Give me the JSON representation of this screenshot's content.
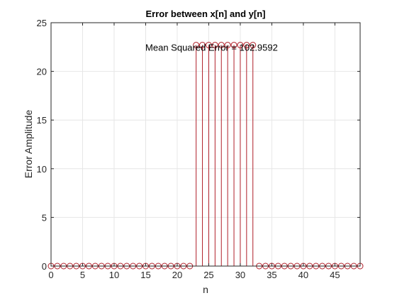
{
  "chart_data": {
    "type": "stem",
    "title": "Error between x[n] and y[n]",
    "xlabel": "n",
    "ylabel": "Error Amplitude",
    "xlim": [
      0,
      49
    ],
    "ylim": [
      0,
      25
    ],
    "xticks": [
      0,
      5,
      10,
      15,
      20,
      25,
      30,
      35,
      40,
      45
    ],
    "yticks": [
      0,
      5,
      10,
      15,
      20,
      25
    ],
    "grid": true,
    "annotation": {
      "text": "Mean Squared Error = 102.9592",
      "x": 25,
      "y": 22.4
    },
    "x": [
      0,
      1,
      2,
      3,
      4,
      5,
      6,
      7,
      8,
      9,
      10,
      11,
      12,
      13,
      14,
      15,
      16,
      17,
      18,
      19,
      20,
      21,
      22,
      23,
      24,
      25,
      26,
      27,
      28,
      29,
      30,
      31,
      32,
      33,
      34,
      35,
      36,
      37,
      38,
      39,
      40,
      41,
      42,
      43,
      44,
      45,
      46,
      47,
      48,
      49
    ],
    "values": [
      0,
      0,
      0,
      0,
      0,
      0,
      0,
      0,
      0,
      0,
      0,
      0,
      0,
      0,
      0,
      0,
      0,
      0,
      0,
      0,
      0,
      0,
      0,
      22.7,
      22.7,
      22.7,
      22.7,
      22.7,
      22.7,
      22.7,
      22.7,
      22.7,
      22.7,
      0,
      0,
      0,
      0,
      0,
      0,
      0,
      0,
      0,
      0,
      0,
      0,
      0,
      0,
      0,
      0,
      0
    ],
    "series_color": "#b0202a"
  }
}
